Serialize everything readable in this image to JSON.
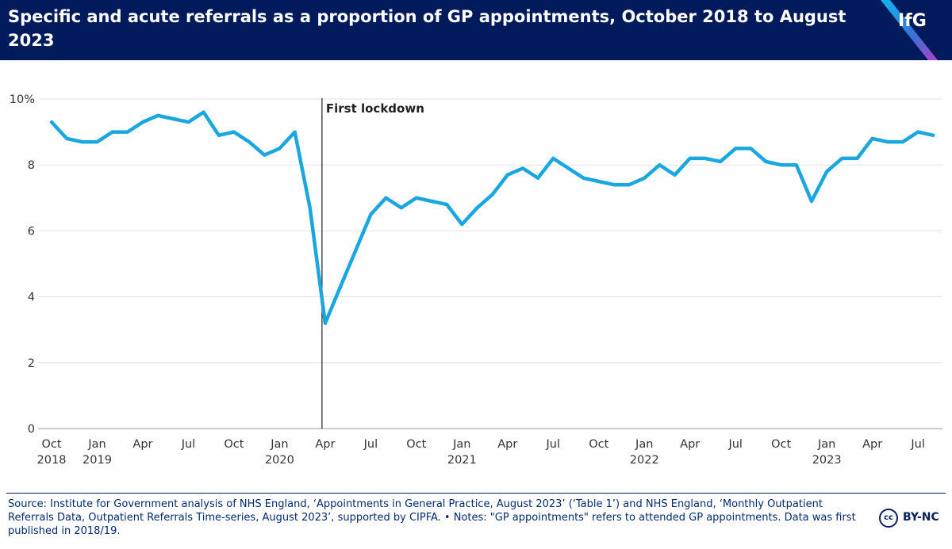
{
  "header": {
    "title": "Specific and acute referrals as a proportion of GP appointments, October 2018 to August 2023",
    "logo": "IfG",
    "background": "#001a5c"
  },
  "chart_data": {
    "type": "line",
    "title": "Specific and acute referrals as a proportion of GP appointments, October 2018 to August 2023",
    "xlabel": "",
    "ylabel": "",
    "ylim": [
      0,
      10
    ],
    "yticks": [
      "0",
      "2",
      "4",
      "6",
      "8",
      "10%"
    ],
    "x_tick_labels": [
      {
        "month": "Oct",
        "year": "2018"
      },
      {
        "month": "Jan",
        "year": "2019"
      },
      {
        "month": "Apr",
        "year": ""
      },
      {
        "month": "Jul",
        "year": ""
      },
      {
        "month": "Oct",
        "year": ""
      },
      {
        "month": "Jan",
        "year": "2020"
      },
      {
        "month": "Apr",
        "year": ""
      },
      {
        "month": "Jul",
        "year": ""
      },
      {
        "month": "Oct",
        "year": ""
      },
      {
        "month": "Jan",
        "year": "2021"
      },
      {
        "month": "Apr",
        "year": ""
      },
      {
        "month": "Jul",
        "year": ""
      },
      {
        "month": "Oct",
        "year": ""
      },
      {
        "month": "Jan",
        "year": "2022"
      },
      {
        "month": "Apr",
        "year": ""
      },
      {
        "month": "Jul",
        "year": ""
      },
      {
        "month": "Oct",
        "year": ""
      },
      {
        "month": "Jan",
        "year": "2023"
      },
      {
        "month": "Apr",
        "year": ""
      },
      {
        "month": "Jul",
        "year": ""
      }
    ],
    "grid": "horizontal",
    "line_color": "#1aa7e0",
    "series": [
      {
        "x": [
          "2018-10",
          "2018-11",
          "2018-12",
          "2019-01",
          "2019-02",
          "2019-03",
          "2019-04",
          "2019-05",
          "2019-06",
          "2019-07",
          "2019-08",
          "2019-09",
          "2019-10",
          "2019-11",
          "2019-12",
          "2020-01",
          "2020-02",
          "2020-03",
          "2020-04",
          "2020-05",
          "2020-06",
          "2020-07",
          "2020-08",
          "2020-09",
          "2020-10",
          "2020-11",
          "2020-12",
          "2021-01",
          "2021-02",
          "2021-03",
          "2021-04",
          "2021-05",
          "2021-06",
          "2021-07",
          "2021-08",
          "2021-09",
          "2021-10",
          "2021-11",
          "2021-12",
          "2022-01",
          "2022-02",
          "2022-03",
          "2022-04",
          "2022-05",
          "2022-06",
          "2022-07",
          "2022-08",
          "2022-09",
          "2022-10",
          "2022-11",
          "2022-12",
          "2023-01",
          "2023-02",
          "2023-03",
          "2023-04",
          "2023-05",
          "2023-06",
          "2023-07",
          "2023-08"
        ],
        "values": [
          9.3,
          8.8,
          8.7,
          8.7,
          9.0,
          9.0,
          9.3,
          9.5,
          9.4,
          9.3,
          9.6,
          8.9,
          9.0,
          8.7,
          8.3,
          8.5,
          9.0,
          6.7,
          3.2,
          4.3,
          5.4,
          6.5,
          7.0,
          6.7,
          7.0,
          6.9,
          6.8,
          6.2,
          6.7,
          7.1,
          7.7,
          7.9,
          7.6,
          8.2,
          7.9,
          7.6,
          7.5,
          7.4,
          7.4,
          7.6,
          8.0,
          7.7,
          8.2,
          8.2,
          8.1,
          8.5,
          8.5,
          8.1,
          8.0,
          8.0,
          6.9,
          7.8,
          8.2,
          8.2,
          8.8,
          8.7,
          8.7,
          9.0,
          8.9
        ]
      }
    ],
    "annotation": {
      "label": "First lockdown",
      "at": "2020-04"
    }
  },
  "footer": {
    "source": "Source: Institute for Government analysis of NHS England, ‘Appointments in General Practice, August 2023’ (‘Table 1’) and NHS England, ‘Monthly Outpatient Referrals Data, Outpatient Referrals Time-series, August 2023’, supported by CIPFA. • Notes: \"GP appointments\" refers to attended GP appointments. Data was first published in 2018/19.",
    "license_badge": "cc",
    "license_label": "BY-NC"
  }
}
